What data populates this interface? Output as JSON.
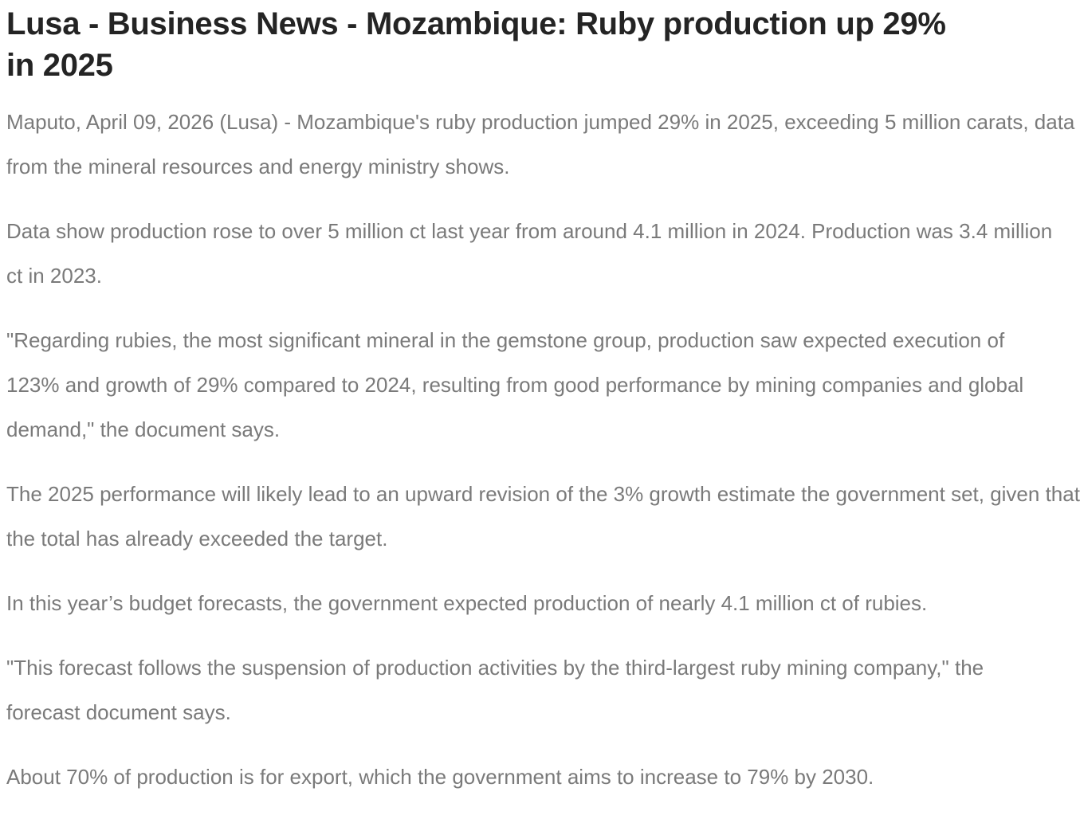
{
  "article": {
    "title": {
      "lines": [
        "Lusa - Business News - Mozambique: Ruby production up 29%",
        "in 2025"
      ]
    },
    "paragraphs": [
      {
        "lines": [
          "Maputo, April 09, 2026 (Lusa) - Mozambique's ruby production jumped 29% in 2025, exceeding 5 million carats, data",
          "from the mineral resources and energy ministry shows."
        ]
      },
      {
        "lines": [
          "Data show production rose to over 5 million ct last year from around 4.1 million in 2024. Production was 3.4 million",
          "ct in 2023."
        ]
      },
      {
        "lines": [
          "\"Regarding rubies, the most significant mineral in the gemstone group, production saw expected execution of",
          "123% and growth of 29% compared to 2024, resulting from good performance by mining companies and global",
          "demand,\" the document says."
        ]
      },
      {
        "lines": [
          "The 2025 performance will likely lead to an upward revision of the 3% growth estimate the government set, given that",
          "the total has already exceeded the target."
        ]
      },
      {
        "lines": [
          "In this year’s budget forecasts, the government expected production of nearly 4.1 million ct of rubies."
        ]
      },
      {
        "lines": [
          "\"This forecast follows the suspension of production activities by the third-largest ruby mining company,\" the",
          "forecast document says."
        ]
      },
      {
        "lines": [
          "About 70% of production is for export, which the government aims to increase to 79% by 2030."
        ]
      }
    ],
    "colors": {
      "title": "#242424",
      "body_text": "#7a7a7a",
      "background": "#ffffff"
    }
  }
}
